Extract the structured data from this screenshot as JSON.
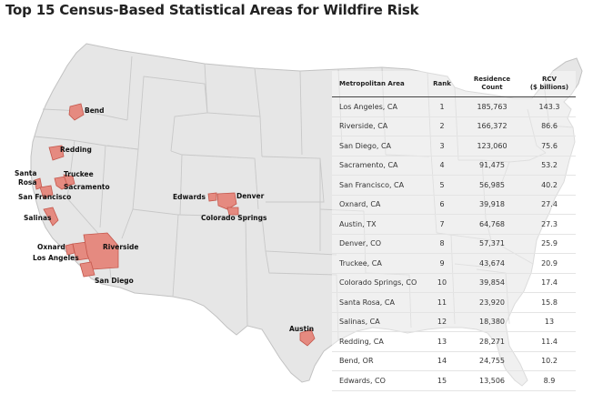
{
  "title": "Top 15 Census-Based Statistical Areas for Wildfire Risk",
  "colors": {
    "land": "#e6e6e6",
    "border": "#c2c2c2",
    "area_fill": "#e58a80",
    "area_stroke": "#c4574c"
  },
  "map_labels": {
    "bend": "Bend",
    "redding": "Redding",
    "santa_rosa_1": "Santa",
    "santa_rosa_2": "Rosa",
    "truckee": "Truckee",
    "sacramento": "Sacramento",
    "san_francisco": "San Francisco",
    "salinas": "Salinas",
    "oxnard": "Oxnard",
    "los_angeles": "Los Angeles",
    "riverside": "Riverside",
    "san_diego": "San Diego",
    "edwards": "Edwards",
    "denver": "Denver",
    "colorado_springs": "Colorado Springs",
    "austin": "Austin"
  },
  "table": {
    "headers": {
      "metro": "Metropolitan Area",
      "rank": "Rank",
      "count_1": "Residence",
      "count_2": "Count",
      "rcv_1": "RCV",
      "rcv_2": "($ billions)"
    },
    "rows": [
      {
        "metro": "Los Angeles, CA",
        "rank": "1",
        "count": "185,763",
        "rcv": "143.3"
      },
      {
        "metro": "Riverside, CA",
        "rank": "2",
        "count": "166,372",
        "rcv": "86.6"
      },
      {
        "metro": "San Diego, CA",
        "rank": "3",
        "count": "123,060",
        "rcv": "75.6"
      },
      {
        "metro": "Sacramento, CA",
        "rank": "4",
        "count": "91,475",
        "rcv": "53.2"
      },
      {
        "metro": "San Francisco, CA",
        "rank": "5",
        "count": "56,985",
        "rcv": "40.2"
      },
      {
        "metro": "Oxnard, CA",
        "rank": "6",
        "count": "39,918",
        "rcv": "27.4"
      },
      {
        "metro": "Austin, TX",
        "rank": "7",
        "count": "64,768",
        "rcv": "27.3"
      },
      {
        "metro": "Denver, CO",
        "rank": "8",
        "count": "57,371",
        "rcv": "25.9"
      },
      {
        "metro": "Truckee, CA",
        "rank": "9",
        "count": "43,674",
        "rcv": "20.9"
      },
      {
        "metro": "Colorado Springs, CO",
        "rank": "10",
        "count": "39,854",
        "rcv": "17.4"
      },
      {
        "metro": "Santa Rosa, CA",
        "rank": "11",
        "count": "23,920",
        "rcv": "15.8"
      },
      {
        "metro": "Salinas, CA",
        "rank": "12",
        "count": "18,380",
        "rcv": "13"
      },
      {
        "metro": "Redding, CA",
        "rank": "13",
        "count": "28,271",
        "rcv": "11.4"
      },
      {
        "metro": "Bend, OR",
        "rank": "14",
        "count": "24,755",
        "rcv": "10.2"
      },
      {
        "metro": "Edwards, CO",
        "rank": "15",
        "count": "13,506",
        "rcv": "8.9"
      }
    ]
  }
}
